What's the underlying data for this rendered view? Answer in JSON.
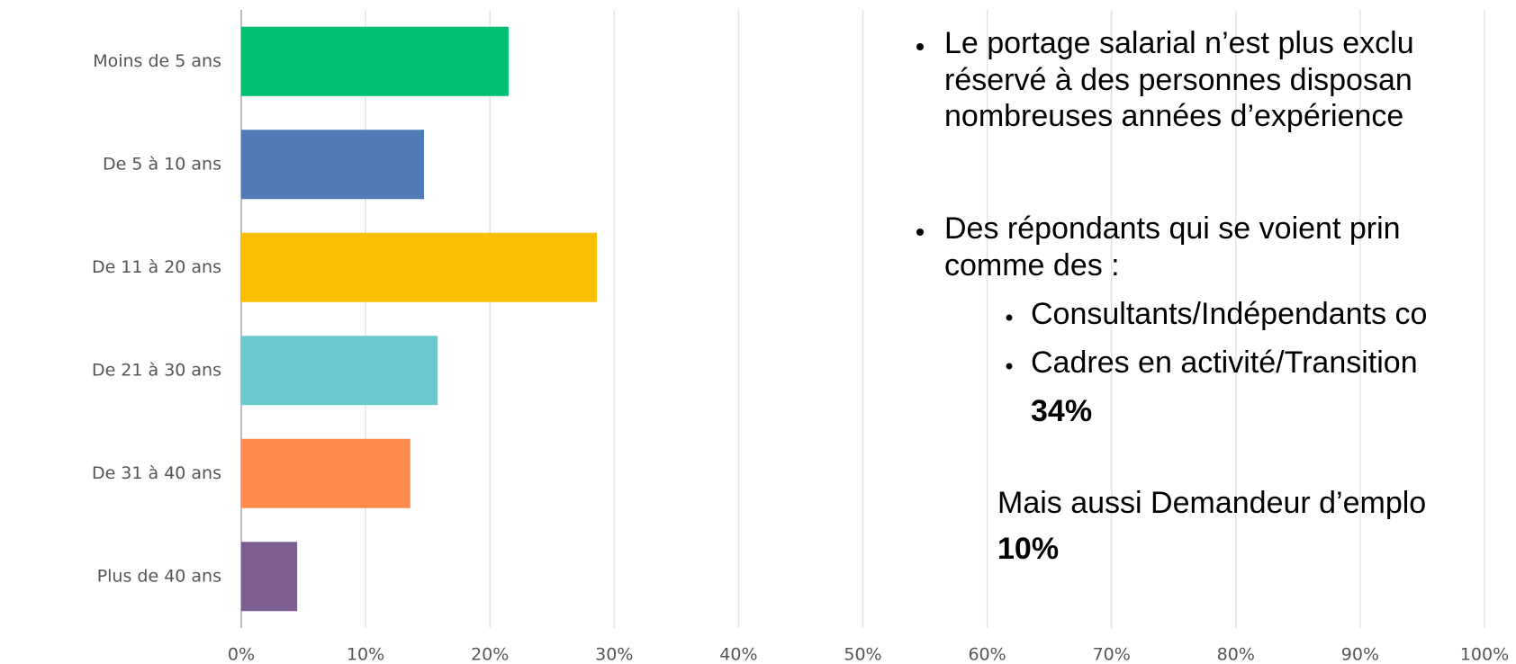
{
  "chart_data": {
    "type": "bar",
    "orientation": "horizontal",
    "categories": [
      "Moins de 5 ans",
      "De 5 à 10 ans",
      "De 11 à 20 ans",
      "De 21 à 30 ans",
      "De 31 à 40 ans",
      "Plus de 40 ans"
    ],
    "values": [
      21.5,
      14.7,
      28.6,
      15.8,
      13.6,
      4.5
    ],
    "colors": [
      "#00bf6f",
      "#507cb6",
      "#f9be00",
      "#6bc8cd",
      "#ff8b4f",
      "#7d5e90"
    ],
    "xlim": [
      0,
      100
    ],
    "xticks": [
      {
        "value": 0,
        "label": "0%"
      },
      {
        "value": 10,
        "label": "10%"
      },
      {
        "value": 20,
        "label": "20%"
      },
      {
        "value": 30,
        "label": "30%"
      },
      {
        "value": 40,
        "label": "40%"
      },
      {
        "value": 50,
        "label": "50%"
      },
      {
        "value": 60,
        "label": "60%"
      },
      {
        "value": 70,
        "label": "70%"
      },
      {
        "value": 80,
        "label": "80%"
      },
      {
        "value": 90,
        "label": "90%"
      },
      {
        "value": 100,
        "label": "100%"
      }
    ],
    "grid": true
  },
  "notes": {
    "bullet1": [
      "Le portage salarial n’est plus exclu",
      "réservé à des personnes disposan",
      "nombreuses années d’expérience"
    ],
    "bullet2": [
      "Des répondants qui se voient prin",
      "comme des :"
    ],
    "sub1": "Consultants/Indépendants co",
    "sub2": "Cadres en activité/Transition",
    "sub2_value": "34%",
    "extra": "Mais aussi Demandeur d’emplo",
    "extra_value": "10%"
  }
}
